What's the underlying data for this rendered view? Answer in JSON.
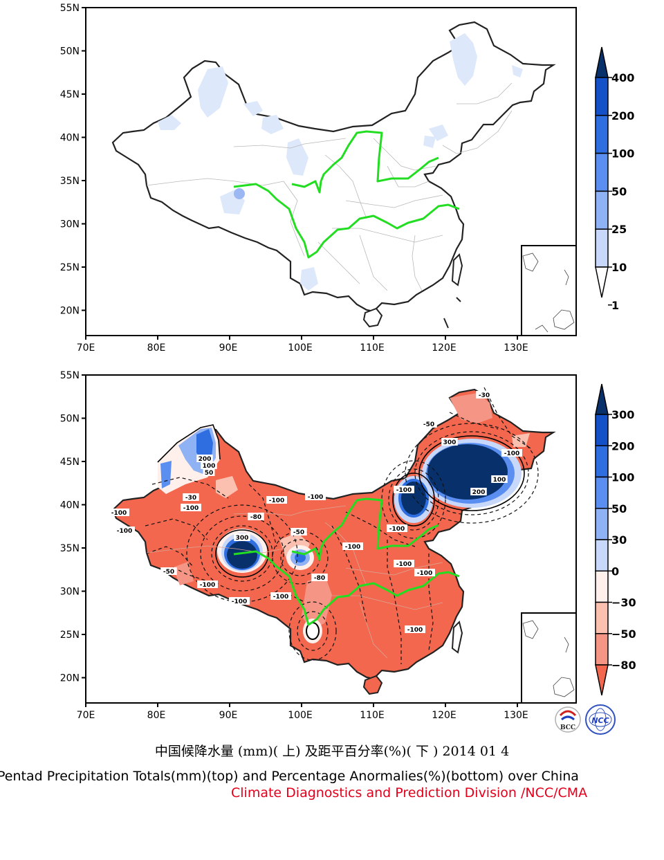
{
  "maps": [
    {
      "id": "precip-total",
      "lat_ticks": [
        "55N",
        "50N",
        "45N",
        "40N",
        "35N",
        "30N",
        "25N",
        "20N"
      ],
      "lon_ticks": [
        "70E",
        "80E",
        "90E",
        "100E",
        "110E",
        "120E",
        "130E"
      ],
      "colorbar": {
        "labels": [
          "400",
          "200",
          "100",
          "50",
          "25",
          "10",
          "1"
        ],
        "colors": [
          "#08306b",
          "#1450c8",
          "#2e6ee0",
          "#5a8ef0",
          "#8fb2f5",
          "#c7d8fa",
          "#ffffff"
        ]
      }
    },
    {
      "id": "precip-anomaly",
      "lat_ticks": [
        "55N",
        "50N",
        "45N",
        "40N",
        "35N",
        "30N",
        "25N",
        "20N"
      ],
      "lon_ticks": [
        "70E",
        "80E",
        "90E",
        "100E",
        "110E",
        "120E",
        "130E"
      ],
      "colorbar": {
        "labels": [
          "300",
          "200",
          "100",
          "50",
          "30",
          "0",
          "−30",
          "−50",
          "−80"
        ],
        "colors": [
          "#08306b",
          "#1450c8",
          "#2e6ee0",
          "#5a8ef0",
          "#8fb2f5",
          "#c7d8fa",
          "#fff0ec",
          "#fcc0b0",
          "#f59585",
          "#f2674d"
        ]
      },
      "contour_labels": [
        "-100",
        "-100",
        "-100",
        "-100",
        "-100",
        "-100",
        "-100",
        "-100",
        "-80",
        "-50",
        "-30",
        "300",
        "200",
        "100",
        "50",
        "-50",
        "-80",
        "-100",
        "-100",
        "-100",
        "-100",
        "-100",
        "-30",
        "-50",
        "-100",
        "100",
        "200",
        "300",
        "-100"
      ]
    }
  ],
  "logos": {
    "left": "BCC",
    "right": "NCC"
  },
  "caption": {
    "cn": "中国候降水量 (mm)( 上) 及距平百分率(%)( 下 ) 2014 01 4",
    "en": "Pentad Precipitation Totals(mm)(top) and Percentage Anormalies(%)(bottom) over China",
    "org": "Climate Diagnostics and Prediction Division /NCC/CMA"
  }
}
